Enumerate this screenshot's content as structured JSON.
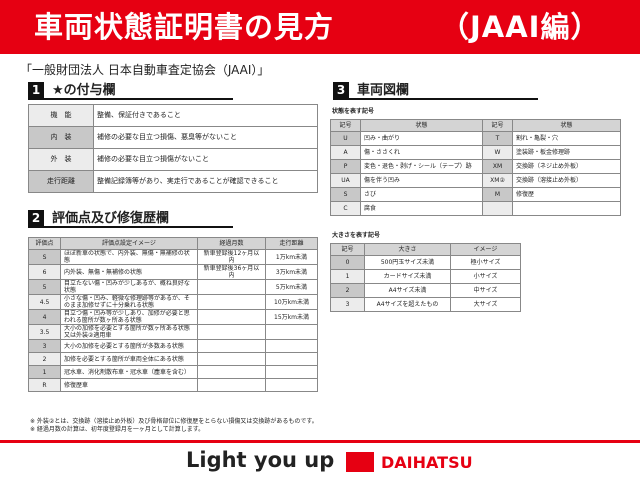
{
  "header": {
    "title": "車両状態証明書の見方",
    "title_right": "（JAAI編）"
  },
  "subtitle": "「一般財団法人 日本自動車査定協会（JAAI）」",
  "section1": {
    "num": "1",
    "title": "★の付与欄",
    "rows": [
      [
        "機　能",
        "整備、保証付きであること"
      ],
      [
        "内　装",
        "補修の必要な目立つ損傷、悪臭等がないこと"
      ],
      [
        "外　装",
        "補修の必要な目立つ損傷がないこと"
      ],
      [
        "走行距離",
        "整備記録簿等があり、実走行であることが確認できること"
      ]
    ]
  },
  "section2": {
    "num": "2",
    "title": "評価点及び修復歴欄",
    "headers": [
      "評価点",
      "評価点設定イメージ",
      "経過月数",
      "走行距離"
    ],
    "rows": [
      [
        "S",
        "ほぼ新車の状態で、内外装、無傷・無補修の状態",
        "新車登録後12ヶ月以内",
        "1万km未満"
      ],
      [
        "6",
        "内外装、無傷・無補修の状態",
        "新車登録後36ヶ月以内",
        "3万km未満"
      ],
      [
        "5",
        "目立たない傷・凹みが少しあるが、概ね良好な状態",
        "",
        "5万km未満"
      ],
      [
        "4.5",
        "小さな傷・凹み、軽微な修理跡等があるが、そのまま加修せずに十分乗れる状態",
        "",
        "10万km未満"
      ],
      [
        "4",
        "目立つ傷・凹み等が少しあり、加修が必要と思われる箇所が数ヶ所ある状態",
        "",
        "15万km未満"
      ],
      [
        "3.5",
        "大小の加修を必要とする箇所が数ヶ所ある状態又は外装②適用車",
        "",
        ""
      ],
      [
        "3",
        "大小の加修を必要とする箇所が多数ある状態",
        "",
        ""
      ],
      [
        "2",
        "加修を必要とする箇所が車両全体にある状態",
        "",
        ""
      ],
      [
        "1",
        "冠水車、消化剤散布車・冠水車（塵車を含む）",
        "",
        ""
      ],
      [
        "R",
        "修復歴車",
        "",
        ""
      ]
    ]
  },
  "section3": {
    "num": "3",
    "title": "車両図欄",
    "cap1": "状態を表す記号",
    "headers": [
      "記号",
      "状態",
      "記号",
      "状態"
    ],
    "rows": [
      [
        "U",
        "凹み・曲がり",
        "T",
        "割れ・亀裂・穴"
      ],
      [
        "A",
        "傷・ささくれ",
        "W",
        "塗装跡・板金修理跡"
      ],
      [
        "P",
        "変色・退色・剥げ・シール（テープ）跡",
        "XM",
        "交換跡（ネジ止め外板）"
      ],
      [
        "UA",
        "傷を伴う凹み",
        "XM②",
        "交換跡（溶接止め外板）"
      ],
      [
        "S",
        "さび",
        "M",
        "修復歴"
      ],
      [
        "C",
        "腐食",
        "",
        ""
      ]
    ],
    "cap2": "大きさを表す記号",
    "size_headers": [
      "記号",
      "大きさ",
      "イメージ"
    ],
    "size_rows": [
      [
        "0",
        "500円玉サイズ未満",
        "極小サイズ"
      ],
      [
        "1",
        "カードサイズ未満",
        "小サイズ"
      ],
      [
        "2",
        "A4サイズ未満",
        "中サイズ"
      ],
      [
        "3",
        "A4サイズを超えたもの",
        "大サイズ"
      ]
    ]
  },
  "notes": [
    "※ 外装②とは、交換跡（溶接止め外板）及び骨格部位に修復歴をとらない損傷又は交換跡があるものです。",
    "※ 経過月数の計算は、初年度登録月を一ヶ月として計算します。"
  ],
  "footer": {
    "slogan": "Light you up",
    "brand": "DAIHATSU"
  },
  "colors": {
    "accent": "#e60012"
  }
}
